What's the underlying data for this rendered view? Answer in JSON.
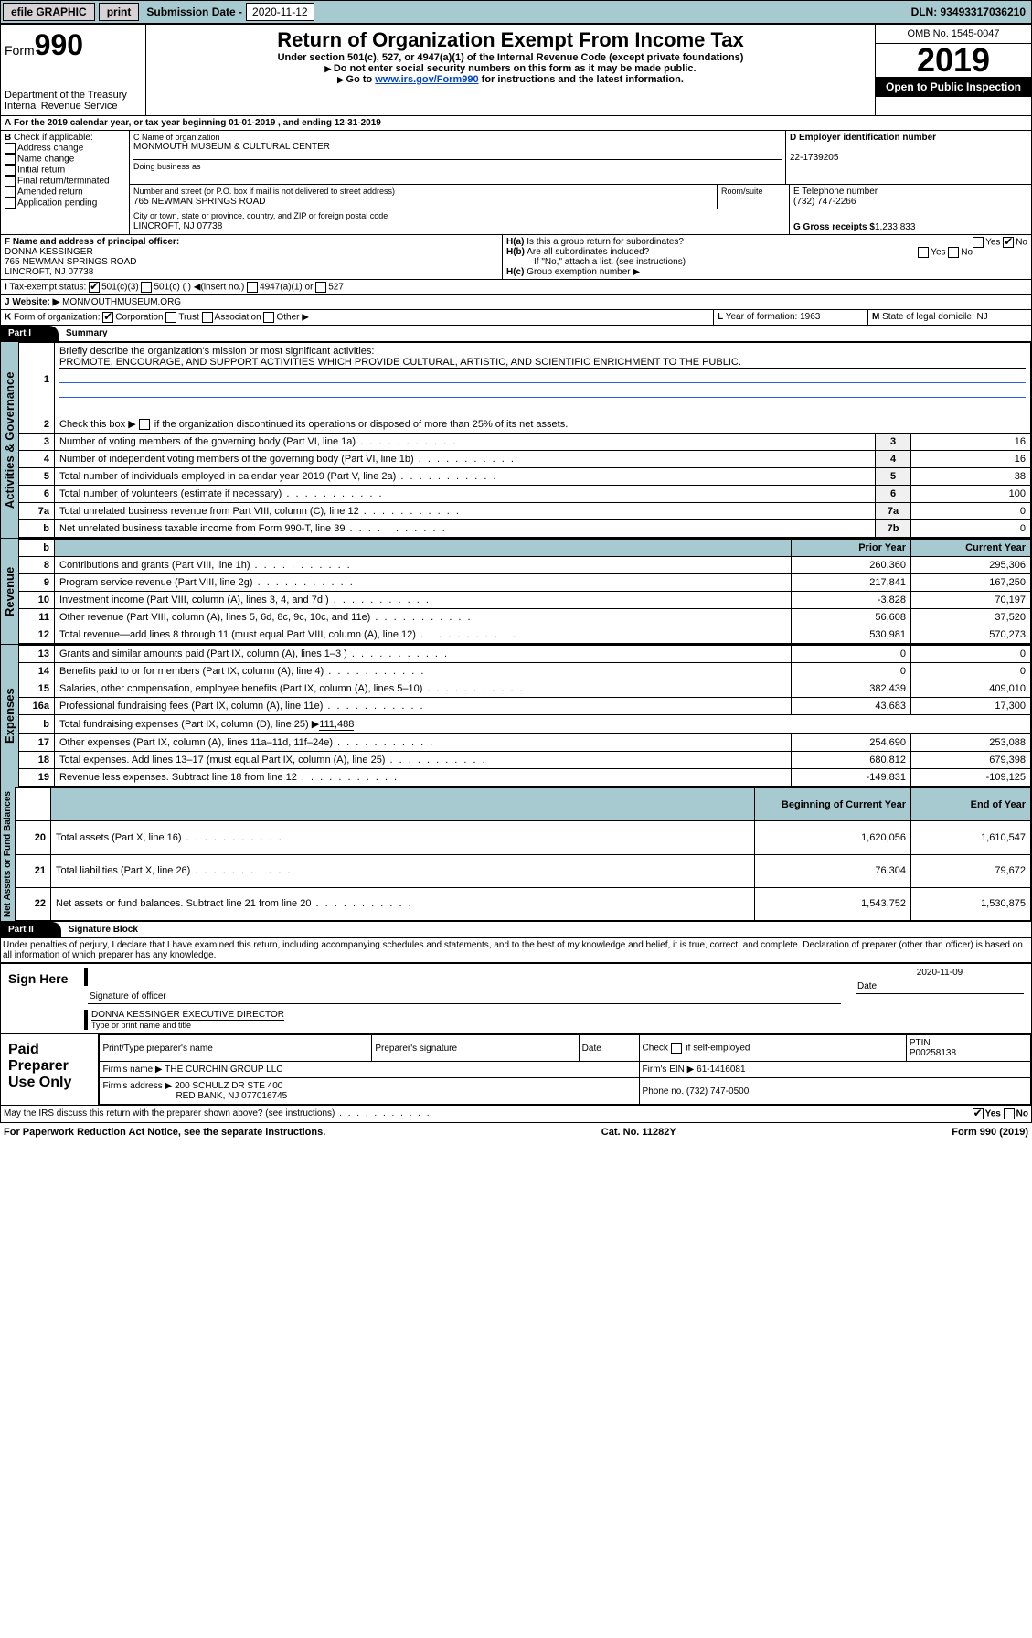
{
  "topbar": {
    "efile": "efile GRAPHIC",
    "print": "print",
    "sublabel": "Submission Date -",
    "subdate": "2020-11-12",
    "dln": "DLN: 93493317036210"
  },
  "header": {
    "form": "Form",
    "n990": "990",
    "dept": "Department of the Treasury",
    "irs": "Internal Revenue Service",
    "title": "Return of Organization Exempt From Income Tax",
    "sub1": "Under section 501(c), 527, or 4947(a)(1) of the Internal Revenue Code (except private foundations)",
    "sub2": "Do not enter social security numbers on this form as it may be made public.",
    "sub3a": "Go to ",
    "sub3b": "www.irs.gov/Form990",
    "sub3c": " for instructions and the latest information.",
    "omb": "OMB No. 1545-0047",
    "year": "2019",
    "open": "Open to Public Inspection"
  },
  "A": {
    "txt": "For the 2019 calendar year, or tax year beginning 01-01-2019   , and ending 12-31-2019"
  },
  "B": {
    "hdr": "B",
    "txt": "Check if applicable:",
    "c1": "Address change",
    "c2": "Name change",
    "c3": "Initial return",
    "c4": "Final return/terminated",
    "c5": "Amended return",
    "c6": "Application pending"
  },
  "C": {
    "lbl": "C Name of organization",
    "name": "MONMOUTH MUSEUM & CULTURAL CENTER",
    "dba": "Doing business as",
    "addr_lbl": "Number and street (or P.O. box if mail is not delivered to street address)",
    "room": "Room/suite",
    "addr": "765 NEWMAN SPRINGS ROAD",
    "city_lbl": "City or town, state or province, country, and ZIP or foreign postal code",
    "city": "LINCROFT, NJ  07738"
  },
  "D": {
    "lbl": "D Employer identification number",
    "val": "22-1739205"
  },
  "E": {
    "lbl": "E Telephone number",
    "val": "(732) 747-2266"
  },
  "G": {
    "lbl": "G Gross receipts $",
    "val": "1,233,833"
  },
  "F": {
    "lbl": "F  Name and address of principal officer:",
    "name": "DONNA KESSINGER",
    "addr": "765 NEWMAN SPRINGS ROAD",
    "city": "LINCROFT, NJ  07738"
  },
  "H": {
    "a": "H(a)",
    "atxt": "Is this a group return for subordinates?",
    "b": "H(b)",
    "btxt": "Are all subordinates included?",
    "note": "If \"No,\" attach a list. (see instructions)",
    "c": "H(c)",
    "ctxt": "Group exemption number ▶",
    "yes": "Yes",
    "no": "No"
  },
  "I": {
    "lbl": "I",
    "txt": "Tax-exempt status:",
    "c1": "501(c)(3)",
    "c2": "501(c) ( ) ◀(insert no.)",
    "c3": "4947(a)(1) or",
    "c4": "527"
  },
  "J": {
    "lbl": "J",
    "txt": "Website: ▶",
    "val": "MONMOUTHMUSEUM.ORG"
  },
  "K": {
    "lbl": "K",
    "txt": "Form of organization:",
    "c1": "Corporation",
    "c2": "Trust",
    "c3": "Association",
    "c4": "Other ▶"
  },
  "L": {
    "lbl": "L",
    "txt": "Year of formation:",
    "val": "1963"
  },
  "M": {
    "lbl": "M",
    "txt": "State of legal domicile:",
    "val": "NJ"
  },
  "partI": {
    "lbl": "Part I",
    "ttl": "Summary"
  },
  "sec1": {
    "v": "Activities & Governance",
    "l1": "Briefly describe the organization's mission or most significant activities:",
    "l1n": "1",
    "l1v": "PROMOTE, ENCOURAGE, AND SUPPORT ACTIVITIES WHICH PROVIDE CULTURAL, ARTISTIC, AND SCIENTIFIC ENRICHMENT TO THE PUBLIC.",
    "l2": "Check this box ▶",
    "l2n": "2",
    "l2t": " if the organization discontinued its operations or disposed of more than 25% of its net assets.",
    "l3": "Number of voting members of the governing body (Part VI, line 1a)",
    "l3n": "3",
    "l3v": "16",
    "l4": "Number of independent voting members of the governing body (Part VI, line 1b)",
    "l4n": "4",
    "l4v": "16",
    "l5": "Total number of individuals employed in calendar year 2019 (Part V, line 2a)",
    "l5n": "5",
    "l5v": "38",
    "l6": "Total number of volunteers (estimate if necessary)",
    "l6n": "6",
    "l6v": "100",
    "l7a": "Total unrelated business revenue from Part VIII, column (C), line 12",
    "l7an": "7a",
    "l7av": "0",
    "l7b": "Net unrelated business taxable income from Form 990-T, line 39",
    "l7bn": "7b",
    "l7bv": "0"
  },
  "sec2": {
    "v": "Revenue",
    "py": "Prior Year",
    "cy": "Current Year",
    "r": [
      {
        "n": "8",
        "t": "Contributions and grants (Part VIII, line 1h)",
        "p": "260,360",
        "c": "295,306"
      },
      {
        "n": "9",
        "t": "Program service revenue (Part VIII, line 2g)",
        "p": "217,841",
        "c": "167,250"
      },
      {
        "n": "10",
        "t": "Investment income (Part VIII, column (A), lines 3, 4, and 7d )",
        "p": "-3,828",
        "c": "70,197"
      },
      {
        "n": "11",
        "t": "Other revenue (Part VIII, column (A), lines 5, 6d, 8c, 9c, 10c, and 11e)",
        "p": "56,608",
        "c": "37,520"
      },
      {
        "n": "12",
        "t": "Total revenue—add lines 8 through 11 (must equal Part VIII, column (A), line 12)",
        "p": "530,981",
        "c": "570,273"
      }
    ]
  },
  "sec3": {
    "v": "Expenses",
    "r": [
      {
        "n": "13",
        "t": "Grants and similar amounts paid (Part IX, column (A), lines 1–3 )",
        "p": "0",
        "c": "0"
      },
      {
        "n": "14",
        "t": "Benefits paid to or for members (Part IX, column (A), line 4)",
        "p": "0",
        "c": "0"
      },
      {
        "n": "15",
        "t": "Salaries, other compensation, employee benefits (Part IX, column (A), lines 5–10)",
        "p": "382,439",
        "c": "409,010"
      },
      {
        "n": "16a",
        "t": "Professional fundraising fees (Part IX, column (A), line 11e)",
        "p": "43,683",
        "c": "17,300"
      }
    ],
    "l16b_n": "b",
    "l16b": "Total fundraising expenses (Part IX, column (D), line 25) ▶",
    "l16bv": "111,488",
    "r2": [
      {
        "n": "17",
        "t": "Other expenses (Part IX, column (A), lines 11a–11d, 11f–24e)",
        "p": "254,690",
        "c": "253,088"
      },
      {
        "n": "18",
        "t": "Total expenses. Add lines 13–17 (must equal Part IX, column (A), line 25)",
        "p": "680,812",
        "c": "679,398"
      },
      {
        "n": "19",
        "t": "Revenue less expenses. Subtract line 18 from line 12",
        "p": "-149,831",
        "c": "-109,125"
      }
    ]
  },
  "sec4": {
    "v": "Net Assets or Fund Balances",
    "by": "Beginning of Current Year",
    "ey": "End of Year",
    "r": [
      {
        "n": "20",
        "t": "Total assets (Part X, line 16)",
        "p": "1,620,056",
        "c": "1,610,547"
      },
      {
        "n": "21",
        "t": "Total liabilities (Part X, line 26)",
        "p": "76,304",
        "c": "79,672"
      },
      {
        "n": "22",
        "t": "Net assets or fund balances. Subtract line 21 from line 20",
        "p": "1,543,752",
        "c": "1,530,875"
      }
    ]
  },
  "partII": {
    "lbl": "Part II",
    "ttl": "Signature Block",
    "decl": "Under penalties of perjury, I declare that I have examined this return, including accompanying schedules and statements, and to the best of my knowledge and belief, it is true, correct, and complete. Declaration of preparer (other than officer) is based on all information of which preparer has any knowledge."
  },
  "sign": {
    "l": "Sign Here",
    "s1": "Signature of officer",
    "date": "2020-11-09",
    "dl": "Date",
    "name": "DONNA KESSINGER  EXECUTIVE DIRECTOR",
    "s2": "Type or print name and title"
  },
  "prep": {
    "l": "Paid Preparer Use Only",
    "h1": "Print/Type preparer's name",
    "h2": "Preparer's signature",
    "h3": "Date",
    "h4a": "Check",
    "h4b": "if self-employed",
    "h5": "PTIN",
    "ptin": "P00258138",
    "fn": "Firm's name    ▶",
    "fnn": "THE CURCHIN GROUP LLC",
    "fein": "Firm's EIN ▶",
    "feinn": "61-1416081",
    "fa": "Firm's address ▶",
    "fav": "200 SCHULZ DR STE 400",
    "fac": "RED BANK, NJ  077016745",
    "ph": "Phone no.",
    "phn": "(732) 747-0500"
  },
  "discuss": {
    "t": "May the IRS discuss this return with the preparer shown above? (see instructions)",
    "yes": "Yes",
    "no": "No"
  },
  "foot": {
    "l": "For Paperwork Reduction Act Notice, see the separate instructions.",
    "c": "Cat. No. 11282Y",
    "r": "Form 990 (2019)"
  }
}
